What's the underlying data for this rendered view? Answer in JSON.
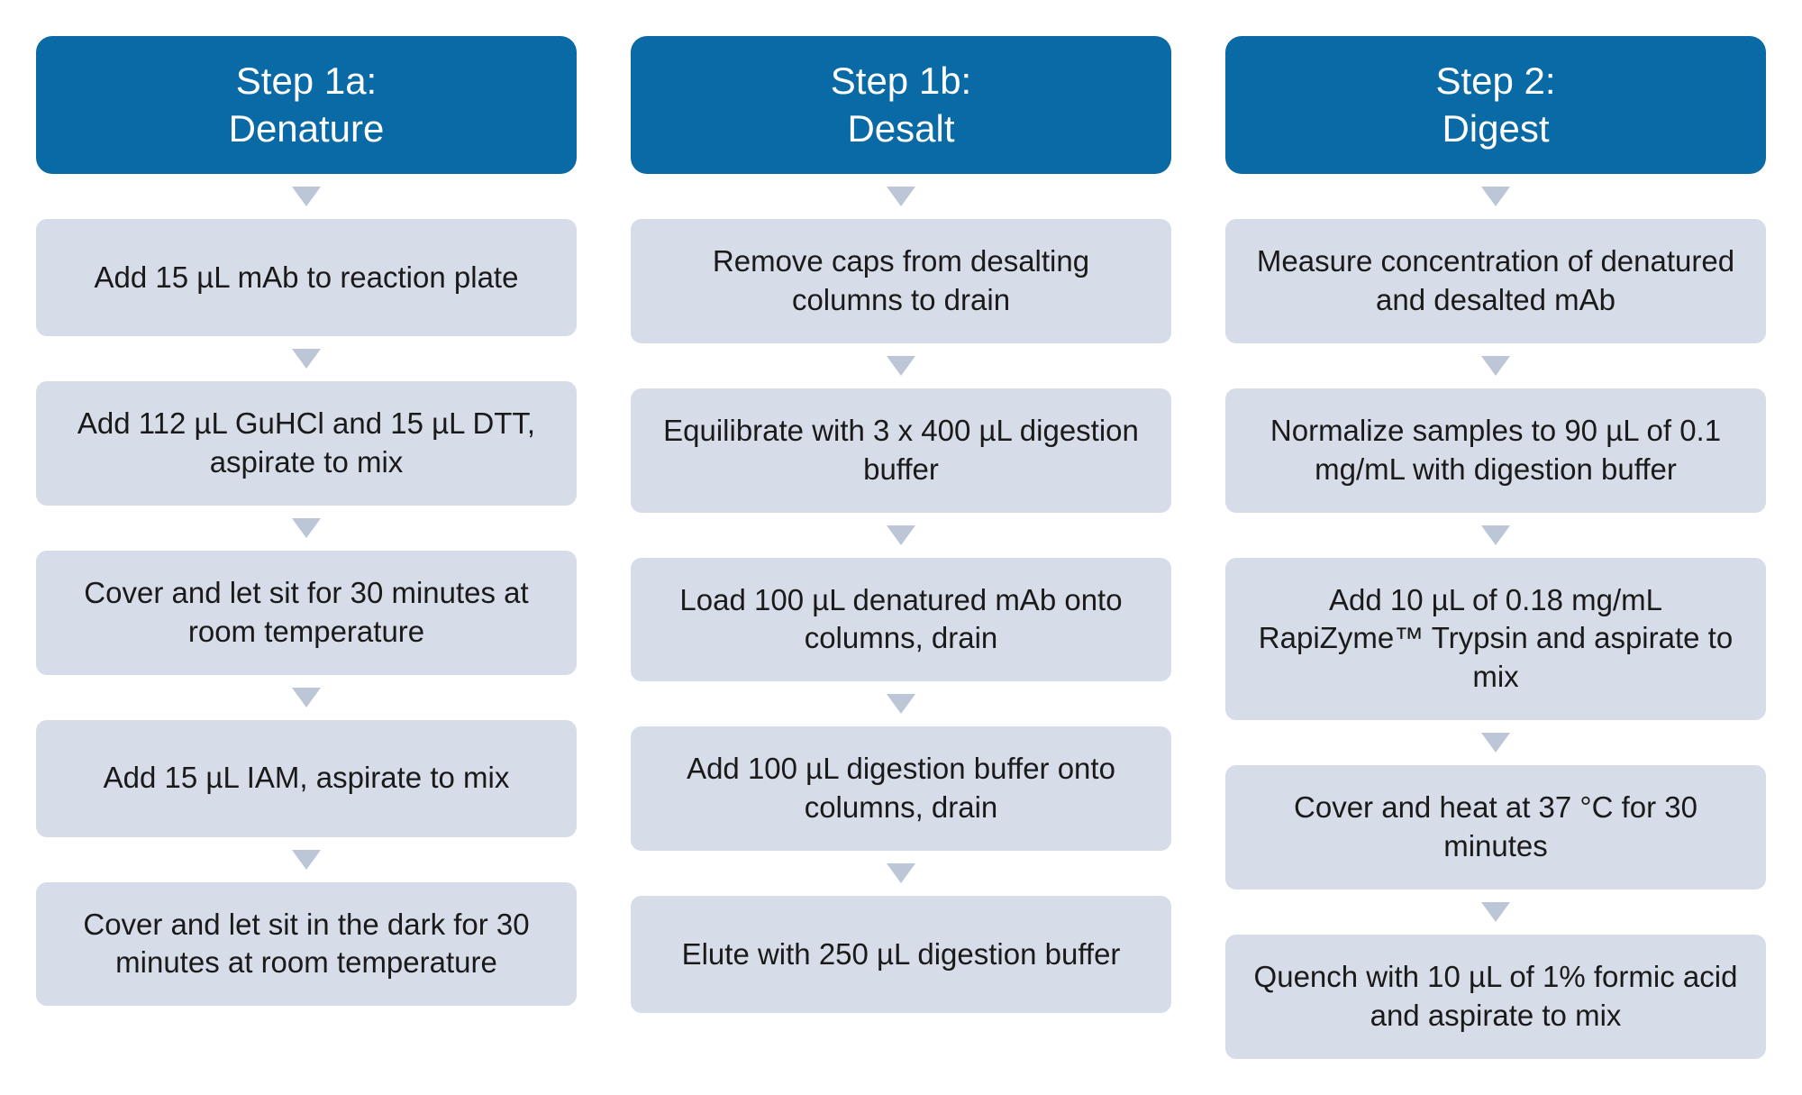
{
  "colors": {
    "header_bg": "#0a6aa6",
    "header_text": "#ffffff",
    "step_bg": "#d6dde8",
    "step_text": "#1a1a1a",
    "arrow": "#bcc6d6",
    "page_bg": "#ffffff"
  },
  "layout": {
    "type": "flowchart",
    "orientation": "vertical-columns",
    "column_count": 3,
    "header_fontsize": 42,
    "step_fontsize": 33,
    "header_radius": 18,
    "step_radius": 12
  },
  "columns": [
    {
      "header": "Step 1a:\nDenature",
      "steps": [
        "Add 15 µL mAb to reaction plate",
        "Add 112 µL GuHCl and 15 µL DTT, aspirate to mix",
        "Cover and let sit for 30 minutes at room temperature",
        "Add 15 µL IAM, aspirate to mix",
        "Cover and let sit in the dark for 30 minutes at room temperature"
      ]
    },
    {
      "header": "Step 1b:\nDesalt",
      "steps": [
        "Remove caps from desalting columns to drain",
        "Equilibrate with 3 x 400 µL digestion buffer",
        "Load 100 µL denatured mAb onto columns, drain",
        "Add 100 µL digestion buffer onto columns, drain",
        "Elute with 250 µL digestion buffer"
      ]
    },
    {
      "header": "Step 2:\nDigest",
      "steps": [
        "Measure concentration of denatured and desalted mAb",
        "Normalize samples to 90 µL of 0.1 mg/mL with digestion buffer",
        "Add 10 µL of 0.18 mg/mL RapiZyme™ Trypsin and aspirate to mix",
        "Cover and heat at 37 °C for 30 minutes",
        "Quench with 10 µL of 1% formic acid and aspirate to mix"
      ]
    }
  ]
}
